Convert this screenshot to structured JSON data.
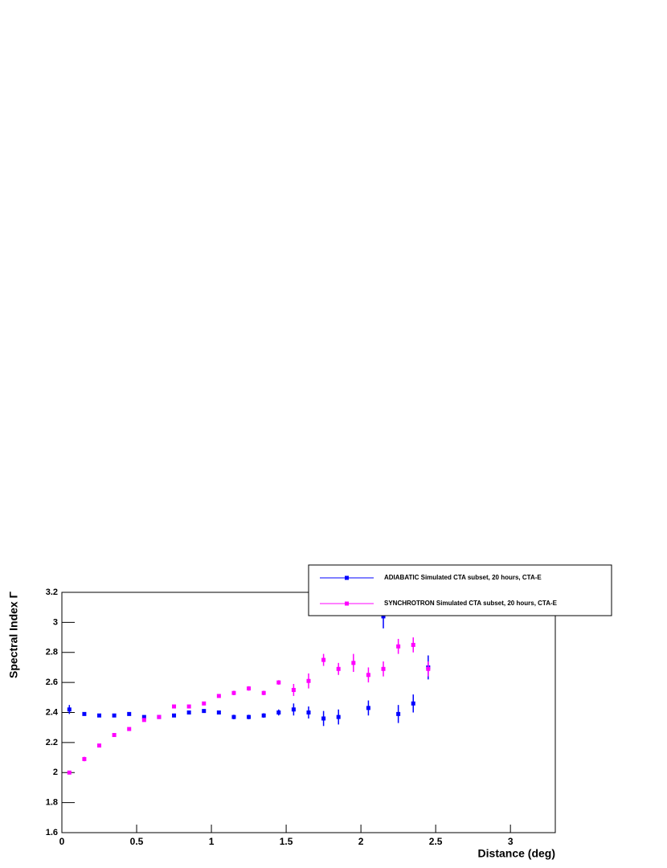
{
  "chart_data": {
    "type": "scatter",
    "x_label": "Distance (deg)",
    "y_label": "Spectral Index Γ",
    "x": [
      0.05,
      0.15,
      0.25,
      0.35,
      0.45,
      0.55,
      0.65,
      0.75,
      0.85,
      0.95,
      1.05,
      1.15,
      1.25,
      1.35,
      1.45,
      1.55,
      1.65,
      1.75,
      1.85,
      1.95,
      2.05,
      2.15,
      2.25,
      2.35,
      2.45
    ],
    "series": [
      {
        "name": "ADIABATIC Simulated CTA subset, 20 hours, CTA-E",
        "color": "#0000ff",
        "values": [
          2.42,
          2.39,
          2.38,
          2.38,
          2.39,
          2.37,
          2.37,
          2.38,
          2.4,
          2.41,
          2.4,
          2.37,
          2.37,
          2.38,
          2.4,
          2.42,
          2.4,
          2.36,
          2.37,
          null,
          2.43,
          3.04,
          2.39,
          2.46,
          2.7
        ],
        "errors": [
          0.03,
          0.01,
          0.01,
          0.01,
          0.01,
          0.01,
          0.01,
          0.01,
          0.01,
          0.01,
          0.01,
          0.015,
          0.015,
          0.015,
          0.02,
          0.04,
          0.04,
          0.05,
          0.05,
          null,
          0.05,
          0.08,
          0.06,
          0.06,
          0.08
        ]
      },
      {
        "name": "SYNCHROTRON Simulated CTA subset, 20 hours, CTA-E",
        "color": "#ff00ff",
        "values": [
          2.0,
          2.09,
          2.18,
          2.25,
          2.29,
          2.35,
          2.37,
          2.44,
          2.44,
          2.46,
          2.51,
          2.53,
          2.56,
          2.53,
          2.6,
          2.55,
          2.61,
          2.75,
          2.69,
          2.73,
          2.65,
          2.69,
          2.84,
          2.85,
          2.69
        ],
        "errors": [
          0.005,
          0.015,
          0.01,
          0.005,
          0.005,
          0.01,
          0.01,
          0.01,
          0.01,
          0.01,
          0.01,
          0.015,
          0.015,
          0.015,
          0.015,
          0.04,
          0.05,
          0.04,
          0.04,
          0.06,
          0.05,
          0.05,
          0.05,
          0.05,
          0.05
        ]
      }
    ],
    "xlim": [
      0,
      3.3
    ],
    "ylim": [
      1.6,
      3.2
    ],
    "xticks": [
      0,
      0.5,
      1,
      1.5,
      2,
      2.5,
      3
    ],
    "yticks": [
      1.6,
      1.8,
      2,
      2.2,
      2.4,
      2.6,
      2.8,
      3,
      3.2
    ]
  }
}
